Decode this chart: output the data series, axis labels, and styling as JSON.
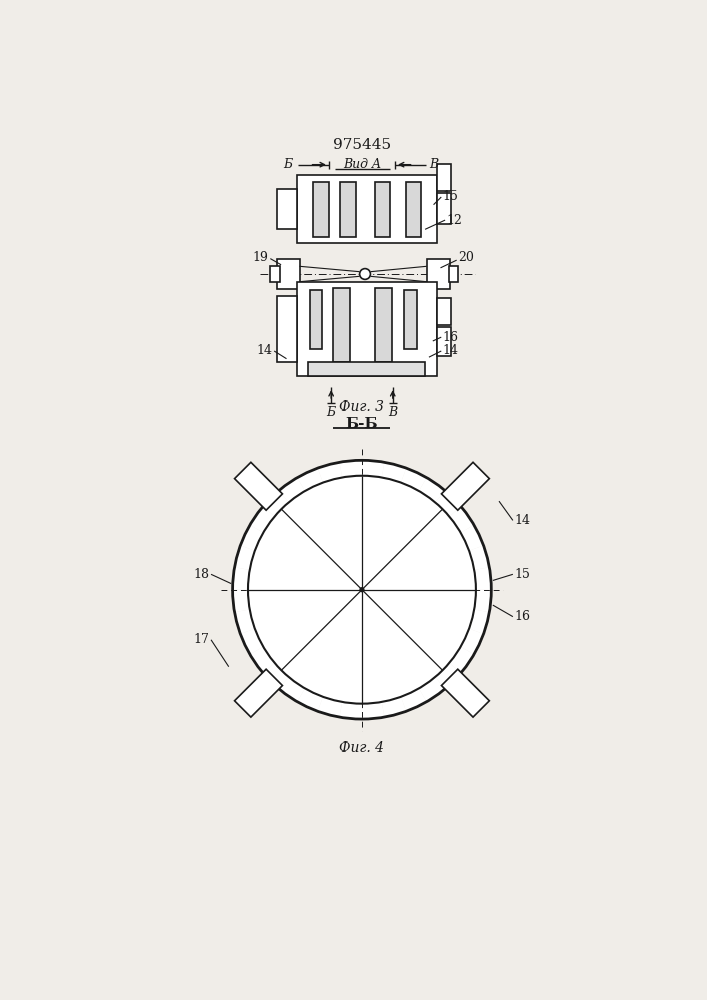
{
  "patent_number": "975445",
  "fig3_label": "Фиг. 3",
  "fig4_label": "Фиг. 4",
  "view_label": "Вид A",
  "section_label": "Б-Б",
  "bg_color": "#f0ede8",
  "line_color": "#1a1a1a"
}
